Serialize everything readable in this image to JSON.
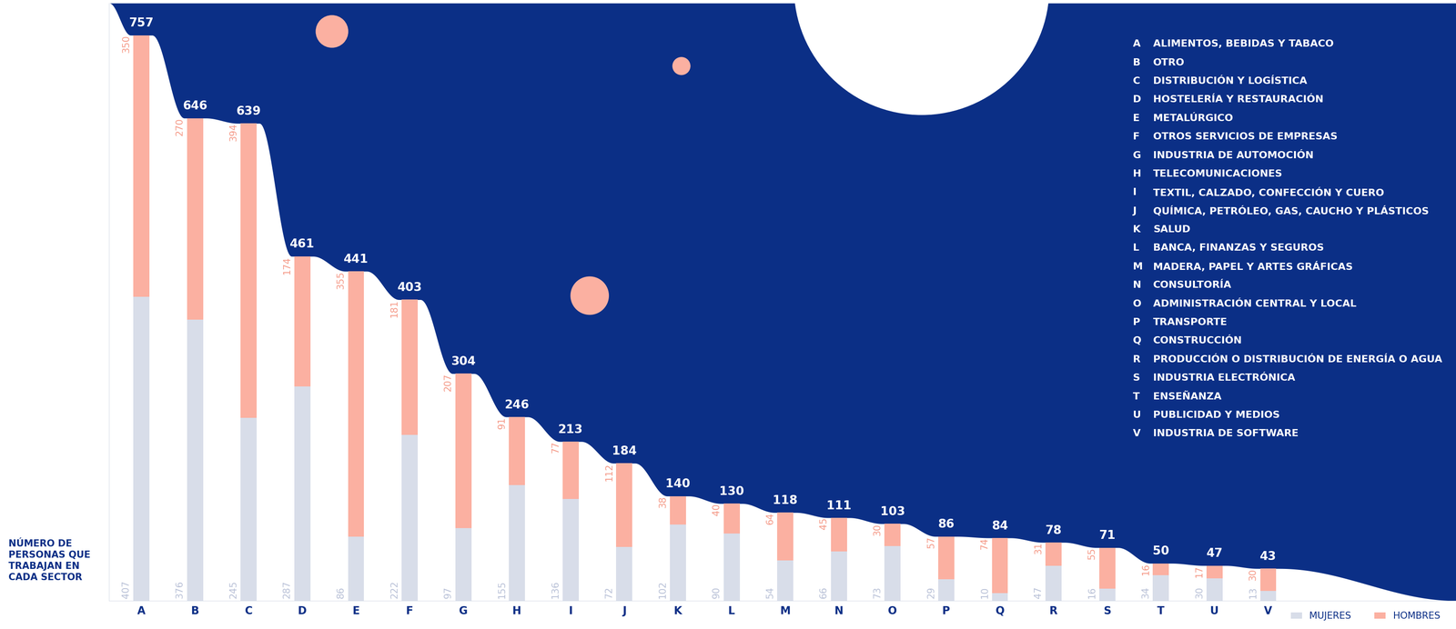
{
  "chart_data": {
    "type": "bar",
    "title": "NÚMERO DE PERSONAS QUE TRABAJAN EN CADA SECTOR",
    "categories": [
      "A",
      "B",
      "C",
      "D",
      "E",
      "F",
      "G",
      "H",
      "I",
      "J",
      "K",
      "L",
      "M",
      "N",
      "O",
      "P",
      "Q",
      "R",
      "S",
      "T",
      "U",
      "V"
    ],
    "series": [
      {
        "name": "MUJERES",
        "color": "#d8dde9",
        "values": [
          407,
          376,
          245,
          287,
          86,
          222,
          97,
          155,
          136,
          72,
          102,
          90,
          54,
          66,
          73,
          29,
          10,
          47,
          16,
          34,
          30,
          13
        ]
      },
      {
        "name": "HOMBRES",
        "color": "#fbb0a1",
        "values": [
          350,
          270,
          394,
          174,
          355,
          181,
          207,
          91,
          77,
          112,
          38,
          40,
          64,
          45,
          30,
          57,
          74,
          31,
          55,
          16,
          17,
          30
        ]
      }
    ],
    "totals": [
      757,
      646,
      639,
      461,
      441,
      403,
      304,
      246,
      213,
      184,
      140,
      130,
      118,
      111,
      103,
      86,
      84,
      78,
      71,
      50,
      47,
      43
    ],
    "sector_key": [
      {
        "letter": "A",
        "name": "ALIMENTOS, BEBIDAS Y TABACO"
      },
      {
        "letter": "B",
        "name": "OTRO"
      },
      {
        "letter": "C",
        "name": "DISTRIBUCIÓN Y LOGÍSTICA"
      },
      {
        "letter": "D",
        "name": "HOSTELERÍA Y RESTAURACIÓN"
      },
      {
        "letter": "E",
        "name": "METALÚRGICO"
      },
      {
        "letter": "F",
        "name": "OTROS SERVICIOS DE EMPRESAS"
      },
      {
        "letter": "G",
        "name": "INDUSTRIA DE AUTOMOCIÓN"
      },
      {
        "letter": "H",
        "name": "TELECOMUNICACIONES"
      },
      {
        "letter": "I",
        "name": "TEXTIL, CALZADO, CONFECCIÓN Y CUERO"
      },
      {
        "letter": "J",
        "name": "QUÍMICA, PETRÓLEO, GAS, CAUCHO Y PLÁSTICOS"
      },
      {
        "letter": "K",
        "name": "SALUD"
      },
      {
        "letter": "L",
        "name": "BANCA, FINANZAS Y SEGUROS"
      },
      {
        "letter": "M",
        "name": "MADERA, PAPEL Y ARTES GRÁFICAS"
      },
      {
        "letter": "N",
        "name": "CONSULTORÍA"
      },
      {
        "letter": "O",
        "name": "ADMINISTRACIÓN CENTRAL Y LOCAL"
      },
      {
        "letter": "P",
        "name": "TRANSPORTE"
      },
      {
        "letter": "Q",
        "name": "CONSTRUCCIÓN"
      },
      {
        "letter": "R",
        "name": "PRODUCCIÓN O DISTRIBUCIÓN DE ENERGÍA O AGUA"
      },
      {
        "letter": "S",
        "name": "INDUSTRIA ELECTRÓNICA"
      },
      {
        "letter": "T",
        "name": "ENSEÑANZA"
      },
      {
        "letter": "U",
        "name": "PUBLICIDAD Y MEDIOS"
      },
      {
        "letter": "V",
        "name": "INDUSTRIA DE SOFTWARE"
      }
    ],
    "ylim": [
      0,
      800
    ],
    "stacked": true,
    "data_labels": true,
    "tick_labels": "x",
    "legend": "lower right"
  }
}
